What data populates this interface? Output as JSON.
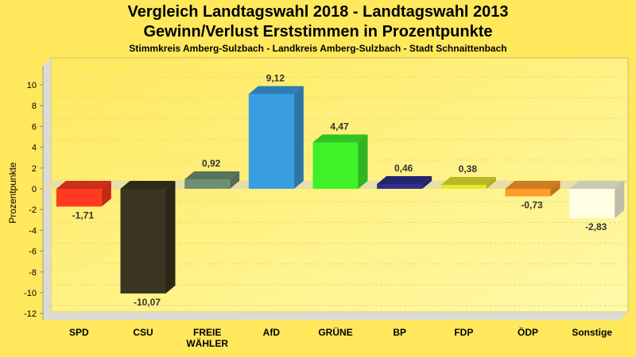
{
  "chart_data": {
    "type": "bar",
    "title": "Vergleich Landtagswahl 2018 - Landtagswahl 2013",
    "subtitle": "Gewinn/Verlust Erststimmen in Prozentpunkte",
    "subtitle2": "Stimmkreis Amberg-Sulzbach - Landkreis Amberg-Sulzbach - Stadt Schnaittenbach",
    "xlabel": "",
    "ylabel": "Prozentpunkte",
    "ylim": [
      -12,
      10
    ],
    "yticks": [
      10,
      8,
      6,
      4,
      2,
      0,
      -2,
      -4,
      -6,
      -8,
      -10,
      -12
    ],
    "grid": true,
    "categories": [
      "SPD",
      "CSU",
      "FREIE WÄHLER",
      "AfD",
      "GRÜNE",
      "BP",
      "FDP",
      "ÖDP",
      "Sonstige"
    ],
    "values": [
      -1.71,
      -10.07,
      0.92,
      9.12,
      4.47,
      0.46,
      0.38,
      -0.73,
      -2.83
    ],
    "labels": [
      "-1,71",
      "-10,07",
      "0,92",
      "9,12",
      "4,47",
      "0,46",
      "0,38",
      "-0,73",
      "-2,83"
    ],
    "colors": [
      "#ff3a1e",
      "#3a3520",
      "#6f8f72",
      "#3a9de2",
      "#3ef22a",
      "#2e2e8e",
      "#e8e830",
      "#ff9c2a",
      "#fffde2"
    ]
  }
}
